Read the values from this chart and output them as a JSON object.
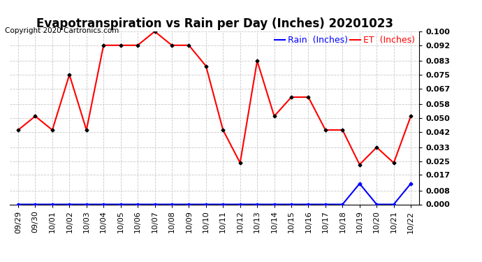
{
  "title": "Evapotranspiration vs Rain per Day (Inches) 20201023",
  "copyright": "Copyright 2020 Cartronics.com",
  "x_labels": [
    "09/29",
    "09/30",
    "10/01",
    "10/02",
    "10/03",
    "10/04",
    "10/05",
    "10/06",
    "10/07",
    "10/08",
    "10/09",
    "10/10",
    "10/11",
    "10/12",
    "10/13",
    "10/14",
    "10/15",
    "10/16",
    "10/17",
    "10/18",
    "10/19",
    "10/20",
    "10/21",
    "10/22"
  ],
  "et_values": [
    0.043,
    0.051,
    0.043,
    0.075,
    0.043,
    0.092,
    0.092,
    0.092,
    0.1,
    0.092,
    0.092,
    0.08,
    0.043,
    0.024,
    0.083,
    0.051,
    0.062,
    0.062,
    0.043,
    0.043,
    0.023,
    0.033,
    0.024,
    0.051
  ],
  "rain_values": [
    0.0,
    0.0,
    0.0,
    0.0,
    0.0,
    0.0,
    0.0,
    0.0,
    0.0,
    0.0,
    0.0,
    0.0,
    0.0,
    0.0,
    0.0,
    0.0,
    0.0,
    0.0,
    0.0,
    0.0,
    0.012,
    0.0,
    0.0,
    0.012
  ],
  "et_color": "red",
  "rain_color": "blue",
  "marker_color": "black",
  "ylim": [
    0.0,
    0.1
  ],
  "yticks": [
    0.0,
    0.008,
    0.017,
    0.025,
    0.033,
    0.042,
    0.05,
    0.058,
    0.067,
    0.075,
    0.083,
    0.092,
    0.1
  ],
  "background_color": "#ffffff",
  "grid_color": "#c8c8c8",
  "legend_rain_label": "Rain  (Inches)",
  "legend_et_label": "ET  (Inches)",
  "title_fontsize": 12,
  "copyright_fontsize": 7.5,
  "tick_fontsize": 8,
  "legend_fontsize": 9
}
